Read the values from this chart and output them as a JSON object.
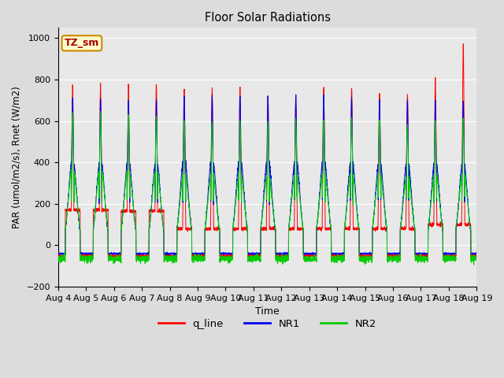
{
  "title": "Floor Solar Radiations",
  "xlabel": "Time",
  "ylabel": "PAR (umol/m2/s), Rnet (W/m2)",
  "ylim": [
    -200,
    1050
  ],
  "yticks": [
    -200,
    0,
    200,
    400,
    600,
    800,
    1000
  ],
  "fig_bg": "#dcdcdc",
  "plot_bg": "#e8e8e8",
  "annotation_text": "TZ_sm",
  "annotation_box_color": "#ffffcc",
  "annotation_box_edge": "#cc8800",
  "legend_entries": [
    "q_line",
    "NR1",
    "NR2"
  ],
  "line_colors": {
    "q_line": "#ff0000",
    "NR1": "#0000ee",
    "NR2": "#00cc00"
  },
  "xtick_labels": [
    "Aug 4",
    "Aug 5",
    "Aug 6",
    "Aug 7",
    "Aug 8",
    "Aug 9",
    "Aug 10",
    "Aug 11",
    "Aug 12",
    "Aug 13",
    "Aug 14",
    "Aug 15",
    "Aug 16",
    "Aug 17",
    "Aug 18",
    "Aug 19"
  ],
  "seed": 42
}
